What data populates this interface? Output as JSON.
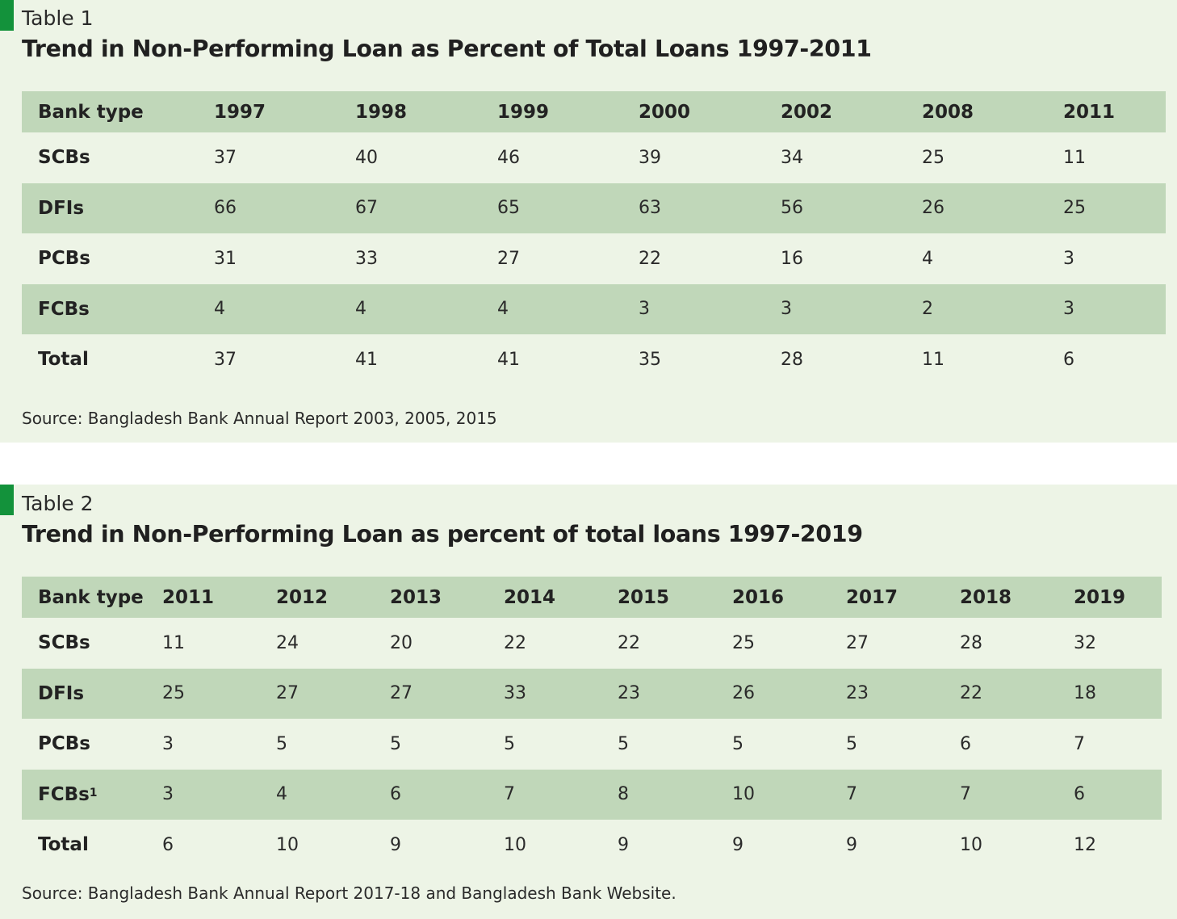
{
  "table1": {
    "label": "Table 1",
    "title": "Trend in Non-Performing Loan as Percent of Total Loans 1997-2011",
    "header": [
      "Bank type",
      "1997",
      "1998",
      "1999",
      "2000",
      "2002",
      "2008",
      "2011"
    ],
    "rows": [
      {
        "name": "SCBs",
        "values": [
          "37",
          "40",
          "46",
          "39",
          "34",
          "25",
          "11"
        ]
      },
      {
        "name": "DFIs",
        "values": [
          "66",
          "67",
          "65",
          "63",
          "56",
          "26",
          "25"
        ]
      },
      {
        "name": "PCBs",
        "values": [
          "31",
          "33",
          "27",
          "22",
          "16",
          "4",
          "3"
        ]
      },
      {
        "name": "FCBs",
        "values": [
          "4",
          "4",
          "4",
          "3",
          "3",
          "2",
          "3"
        ]
      },
      {
        "name": "Total",
        "values": [
          "37",
          "41",
          "41",
          "35",
          "28",
          "11",
          "6"
        ]
      }
    ],
    "source": "Source: Bangladesh Bank Annual Report 2003, 2005, 2015"
  },
  "table2": {
    "label": "Table 2",
    "title": "Trend in Non-Performing Loan as percent of total loans 1997-2019",
    "header": [
      "Bank type",
      "2011",
      "2012",
      "2013",
      "2014",
      "2015",
      "2016",
      "2017",
      "2018",
      "2019"
    ],
    "rows": [
      {
        "name": "SCBs",
        "values": [
          "11",
          "24",
          "20",
          "22",
          "22",
          "25",
          "27",
          "28",
          "32"
        ]
      },
      {
        "name": "DFIs",
        "values": [
          "25",
          "27",
          "27",
          "33",
          "23",
          "26",
          "23",
          "22",
          "18"
        ]
      },
      {
        "name": "PCBs",
        "values": [
          "3",
          "5",
          "5",
          "5",
          "5",
          "5",
          "5",
          "6",
          "7"
        ]
      },
      {
        "name": "FCBs",
        "footnote": "1",
        "values": [
          "3",
          "4",
          "6",
          "7",
          "8",
          "10",
          "7",
          "7",
          "6"
        ]
      },
      {
        "name": "Total",
        "values": [
          "6",
          "10",
          "9",
          "10",
          "9",
          "9",
          "9",
          "10",
          "12"
        ]
      }
    ],
    "source": "Source: Bangladesh Bank Annual Report 2017-18 and Bangladesh Bank Website."
  },
  "colors": {
    "marker": "#13923b",
    "panel_bg": "#edf4e6",
    "row_shade": "#c0d7b9"
  }
}
